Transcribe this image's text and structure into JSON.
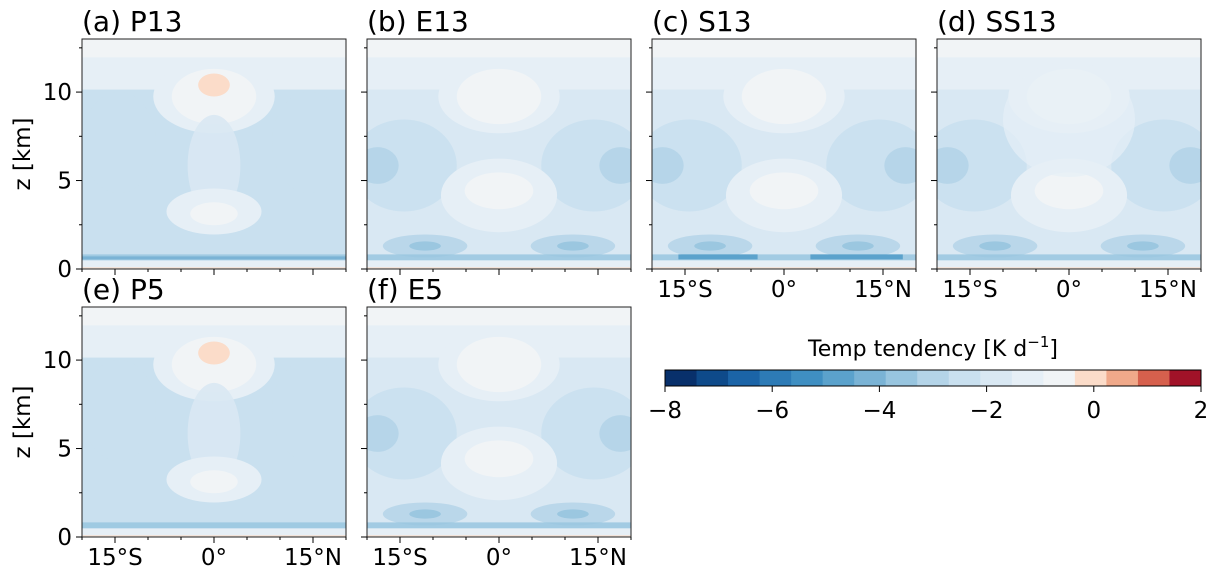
{
  "chart_data": {
    "type": "heatmap",
    "panels": [
      {
        "title": "(a) P13",
        "variant": "P13"
      },
      {
        "title": "(b) E13",
        "variant": "E13"
      },
      {
        "title": "(c) S13",
        "variant": "S13"
      },
      {
        "title": "(d) SS13",
        "variant": "SS13"
      },
      {
        "title": "(e) P5",
        "variant": "P5"
      },
      {
        "title": "(f) E5",
        "variant": "E5"
      }
    ],
    "ylabel": "z [km]",
    "yticks": [
      0,
      5,
      10
    ],
    "ylim": [
      0,
      13
    ],
    "xticks": [
      -15,
      0,
      15
    ],
    "xticklabels": [
      "15°S",
      "0°",
      "15°N"
    ],
    "xlim": [
      -20,
      20
    ],
    "colorbar": {
      "label": "Temp tendency [K d",
      "label_sup": "−1",
      "label_end": "]",
      "vmin": -8,
      "vmax": 2,
      "ticks": [
        -8,
        -6,
        -4,
        -2,
        0,
        2
      ],
      "ticklabels": [
        "−8",
        "−6",
        "−4",
        "−2",
        "0",
        "2"
      ],
      "colors": [
        "#08306b",
        "#0e4a8a",
        "#1b64a7",
        "#2d7bb6",
        "#3f8fc2",
        "#5ba2cc",
        "#7ab3d5",
        "#98c5df",
        "#b4d4e8",
        "#c9e0ef",
        "#d9e8f3",
        "#e6eff6",
        "#f1f4f6",
        "#fbdcc9",
        "#f0a98a",
        "#d6604d",
        "#a11228"
      ]
    }
  }
}
